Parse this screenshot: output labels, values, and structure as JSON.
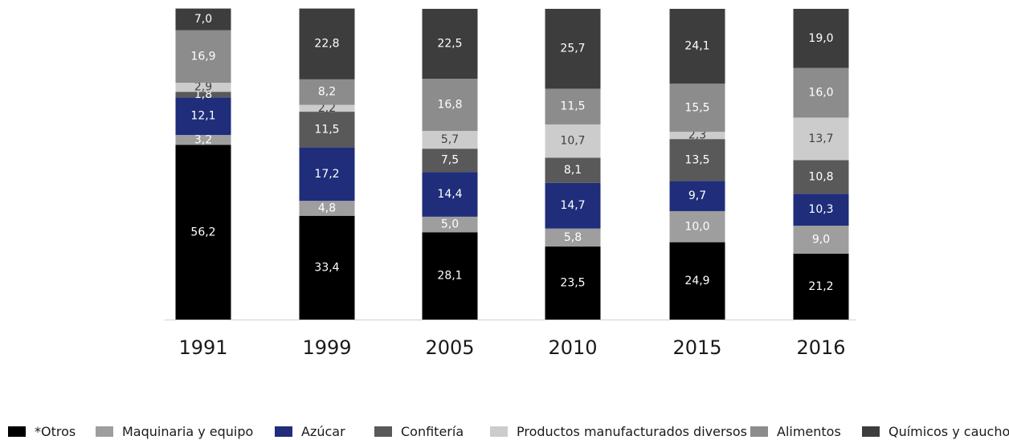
{
  "chart_data": {
    "type": "bar",
    "stacked": true,
    "title": "",
    "xlabel": "",
    "ylabel": "",
    "ylim": [
      0,
      100
    ],
    "grid": false,
    "legend_position": "bottom",
    "categories": [
      "1991",
      "1999",
      "2005",
      "2010",
      "2015",
      "2016"
    ],
    "series": [
      {
        "name": "*Otros",
        "color": "#000000",
        "label_color": "#ffffff",
        "values": [
          56.2,
          33.4,
          28.1,
          23.5,
          24.9,
          21.2
        ],
        "labels": [
          "56,2",
          "33,4",
          "28,1",
          "23,5",
          "24,9",
          "21,2"
        ]
      },
      {
        "name": "Maquinaria y equipo",
        "color": "#9e9e9e",
        "label_color": "#ffffff",
        "values": [
          3.2,
          4.8,
          5.0,
          5.8,
          10.0,
          9.0
        ],
        "labels": [
          "3,2",
          "4,8",
          "5,0",
          "5,8",
          "10,0",
          "9,0"
        ]
      },
      {
        "name": "Azúcar",
        "color": "#1f2d7a",
        "label_color": "#ffffff",
        "values": [
          12.1,
          17.2,
          14.4,
          14.7,
          9.7,
          10.3
        ],
        "labels": [
          "12,1",
          "17,2",
          "14,4",
          "14,7",
          "9,7",
          "10,3"
        ]
      },
      {
        "name": "Confitería",
        "color": "#595959",
        "label_color": "#ffffff",
        "values": [
          1.8,
          11.5,
          7.5,
          8.1,
          13.5,
          10.8
        ],
        "labels": [
          "1,8",
          "11,5",
          "7,5",
          "8,1",
          "13,5",
          "10,8"
        ]
      },
      {
        "name": "Productos manufacturados diversos",
        "color": "#cccccc",
        "label_color": "#404040",
        "values": [
          2.9,
          2.2,
          5.7,
          10.7,
          2.3,
          13.7
        ],
        "labels": [
          "2,9",
          "2,2",
          "5,7",
          "10,7",
          "2,3",
          "13,7"
        ]
      },
      {
        "name": "Alimentos",
        "color": "#8c8c8c",
        "label_color": "#ffffff",
        "values": [
          16.9,
          8.2,
          16.8,
          11.5,
          15.5,
          16.0
        ],
        "labels": [
          "16,9",
          "8,2",
          "16,8",
          "11,5",
          "15,5",
          "16,0"
        ]
      },
      {
        "name": "Químicos y caucho",
        "color": "#3d3d3d",
        "label_color": "#ffffff",
        "values": [
          7.0,
          22.8,
          22.5,
          25.7,
          24.1,
          19.0
        ],
        "labels": [
          "7,0",
          "22,8",
          "22,5",
          "25,7",
          "24,1",
          "19,0"
        ]
      }
    ]
  }
}
